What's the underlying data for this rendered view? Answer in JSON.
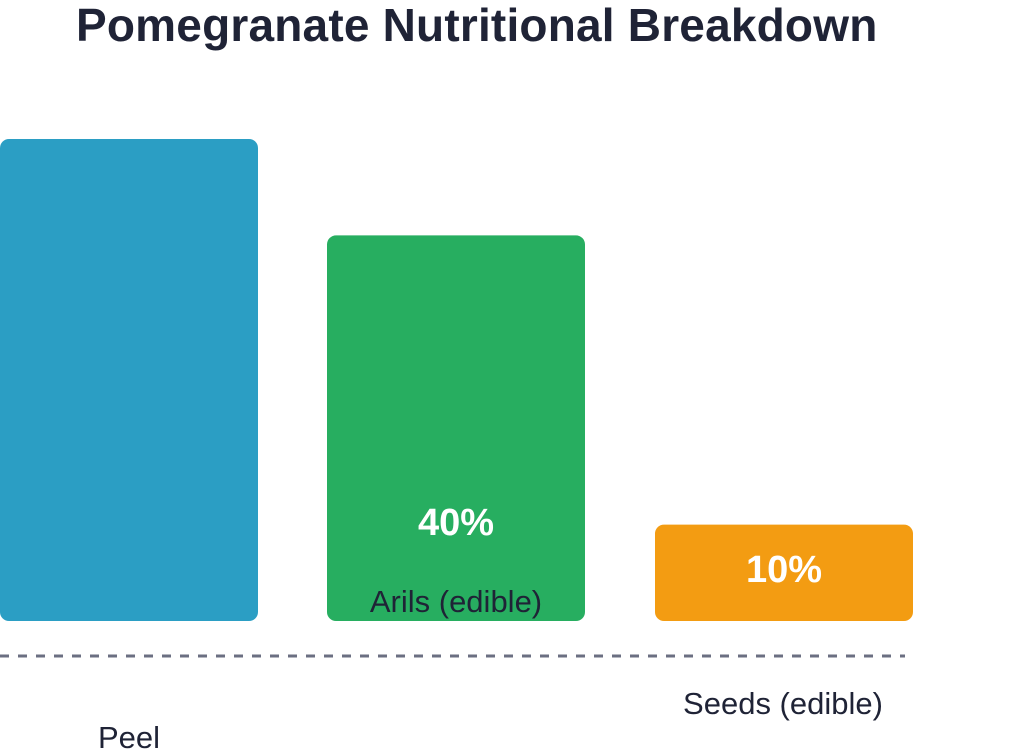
{
  "chart_data": {
    "type": "bar",
    "title": "Pomegranate Nutritional Breakdown",
    "categories": [
      "Peel",
      "Arils (edible)",
      "Seeds (edible)"
    ],
    "values": [
      50,
      40,
      10
    ],
    "value_labels": [
      "",
      "40%",
      "10%"
    ],
    "colors": [
      "#2b9ec4",
      "#27ae60",
      "#f39c12"
    ],
    "baseline_color": "#6b6f82",
    "xlabel": "",
    "ylabel": "",
    "grid": false
  }
}
